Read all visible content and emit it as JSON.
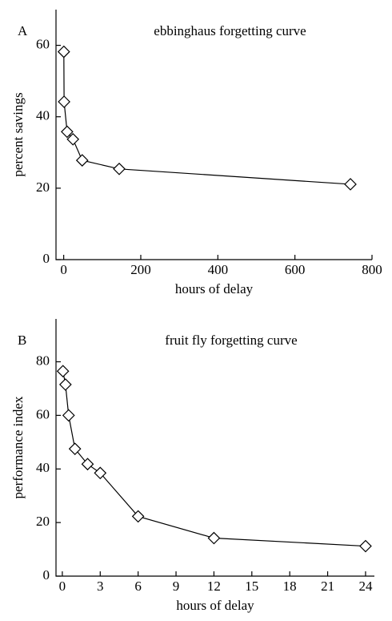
{
  "chart_data": [
    {
      "type": "line",
      "panel": "A",
      "title": "ebbinghaus forgetting curve",
      "xlabel": "hours of delay",
      "ylabel": "percent savings",
      "x": [
        0.33,
        1,
        8.8,
        24,
        48,
        144,
        744
      ],
      "values": [
        58.2,
        44.2,
        35.8,
        33.7,
        27.8,
        25.4,
        21.1
      ],
      "xlim": [
        -20,
        800
      ],
      "ylim": [
        0,
        70
      ],
      "xticks": [
        0,
        200,
        400,
        600,
        800
      ],
      "yticks": [
        0,
        20,
        40,
        60
      ],
      "color": "#000000"
    },
    {
      "type": "line",
      "panel": "B",
      "title": "fruit fly forgetting curve",
      "xlabel": "hours of delay",
      "ylabel": "performance index",
      "x": [
        0.05,
        0.25,
        0.5,
        1,
        2,
        3,
        6,
        12,
        24
      ],
      "values": [
        76.5,
        71.5,
        60,
        47.5,
        41.8,
        38.5,
        22.3,
        14.2,
        11.2
      ],
      "xlim": [
        -0.5,
        24.7
      ],
      "ylim": [
        0,
        96
      ],
      "xticks": [
        0,
        3,
        6,
        9,
        12,
        15,
        18,
        21,
        24
      ],
      "yticks": [
        0,
        20,
        40,
        60,
        80
      ],
      "color": "#000000"
    }
  ]
}
